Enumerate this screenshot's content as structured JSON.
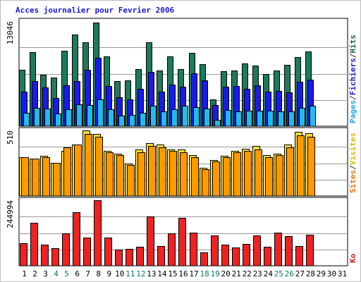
{
  "chart_data": {
    "type": "bar",
    "title": "Acces journalier pour Fevrier 2006",
    "days": [
      "1",
      "2",
      "3",
      "4",
      "5",
      "6",
      "7",
      "8",
      "9",
      "10",
      "11",
      "12",
      "13",
      "14",
      "15",
      "16",
      "17",
      "18",
      "19",
      "20",
      "21",
      "22",
      "23",
      "24",
      "25",
      "26",
      "27",
      "28",
      "29",
      "30",
      "31"
    ],
    "weekend_days": [
      "4",
      "5",
      "11",
      "12",
      "18",
      "19",
      "25",
      "26"
    ],
    "panels": [
      {
        "max_label": "13046",
        "ylim": [
          0,
          13046
        ],
        "legend": [
          {
            "text": "Pages",
            "color": "#22aadd"
          },
          {
            "text": "/",
            "color": "#333333"
          },
          {
            "text": "Fichiers",
            "color": "#2222cc"
          },
          {
            "text": "/",
            "color": "#333333"
          },
          {
            "text": "Hits",
            "color": "#226644"
          }
        ],
        "series": [
          {
            "name": "Hits",
            "color": "#1d7a5a",
            "values": [
              7000,
              9200,
              6400,
              6000,
              9400,
              11400,
              10400,
              12900,
              8700,
              5600,
              5700,
              7100,
              10400,
              6900,
              8700,
              7100,
              9100,
              7700,
              3300,
              6800,
              6900,
              7800,
              7500,
              6500,
              6900,
              7600,
              8600,
              9300,
              0,
              0,
              0
            ]
          },
          {
            "name": "Fichiers",
            "color": "#1a1aee",
            "values": [
              4300,
              5600,
              4800,
              3500,
              5100,
              5600,
              7000,
              8500,
              5000,
              3600,
              3300,
              4600,
              6700,
              4300,
              5200,
              4900,
              6600,
              5700,
              2600,
              4900,
              5000,
              4600,
              5100,
              4300,
              4400,
              4200,
              5500,
              5800,
              0,
              0,
              0
            ]
          },
          {
            "name": "Pages",
            "color": "#22bbee",
            "values": [
              1700,
              2300,
              2200,
              1600,
              2100,
              2700,
              2600,
              3300,
              2100,
              1300,
              1400,
              1700,
              2500,
              1800,
              2100,
              2500,
              2400,
              2200,
              800,
              2000,
              1800,
              1900,
              1900,
              1900,
              1800,
              1800,
              2300,
              2500,
              0,
              0,
              0
            ]
          }
        ]
      },
      {
        "max_label": "510",
        "ylim": [
          0,
          510
        ],
        "legend": [
          {
            "text": "Sites",
            "color": "#ee7711"
          },
          {
            "text": "/",
            "color": "#333333"
          },
          {
            "text": "Visites",
            "color": "#ddbb11"
          }
        ],
        "series": [
          {
            "name": "Visites",
            "color": "#ffdd33",
            "values": [
              300,
              290,
              310,
              260,
              350,
              400,
              510,
              480,
              350,
              330,
              250,
              360,
              410,
              400,
              360,
              360,
              320,
              220,
              280,
              310,
              350,
              370,
              390,
              320,
              330,
              400,
              500,
              490,
              0,
              0,
              0
            ]
          },
          {
            "name": "Sites",
            "color": "#ff9900",
            "values": [
              300,
              290,
              300,
              260,
              380,
              400,
              480,
              460,
              340,
              320,
              240,
              340,
              390,
              380,
              350,
              340,
              300,
              210,
              270,
              300,
              340,
              350,
              360,
              300,
              320,
              380,
              470,
              460,
              0,
              0,
              0
            ]
          }
        ]
      },
      {
        "max_label": "244994",
        "ylim": [
          0,
          244994
        ],
        "legend": [
          {
            "text": "Ko",
            "color": "#cc2222"
          }
        ],
        "series": [
          {
            "name": "Ko",
            "color": "#ee2222",
            "values": [
              85000,
              160000,
              80000,
              65000,
              120000,
              200000,
              105000,
              244994,
              105000,
              60000,
              64000,
              70000,
              185000,
              75000,
              122000,
              178000,
              125000,
              50000,
              112000,
              80000,
              68000,
              82000,
              112000,
              70000,
              123000,
              110000,
              75000,
              116000,
              0,
              0,
              0
            ]
          }
        ]
      }
    ]
  }
}
